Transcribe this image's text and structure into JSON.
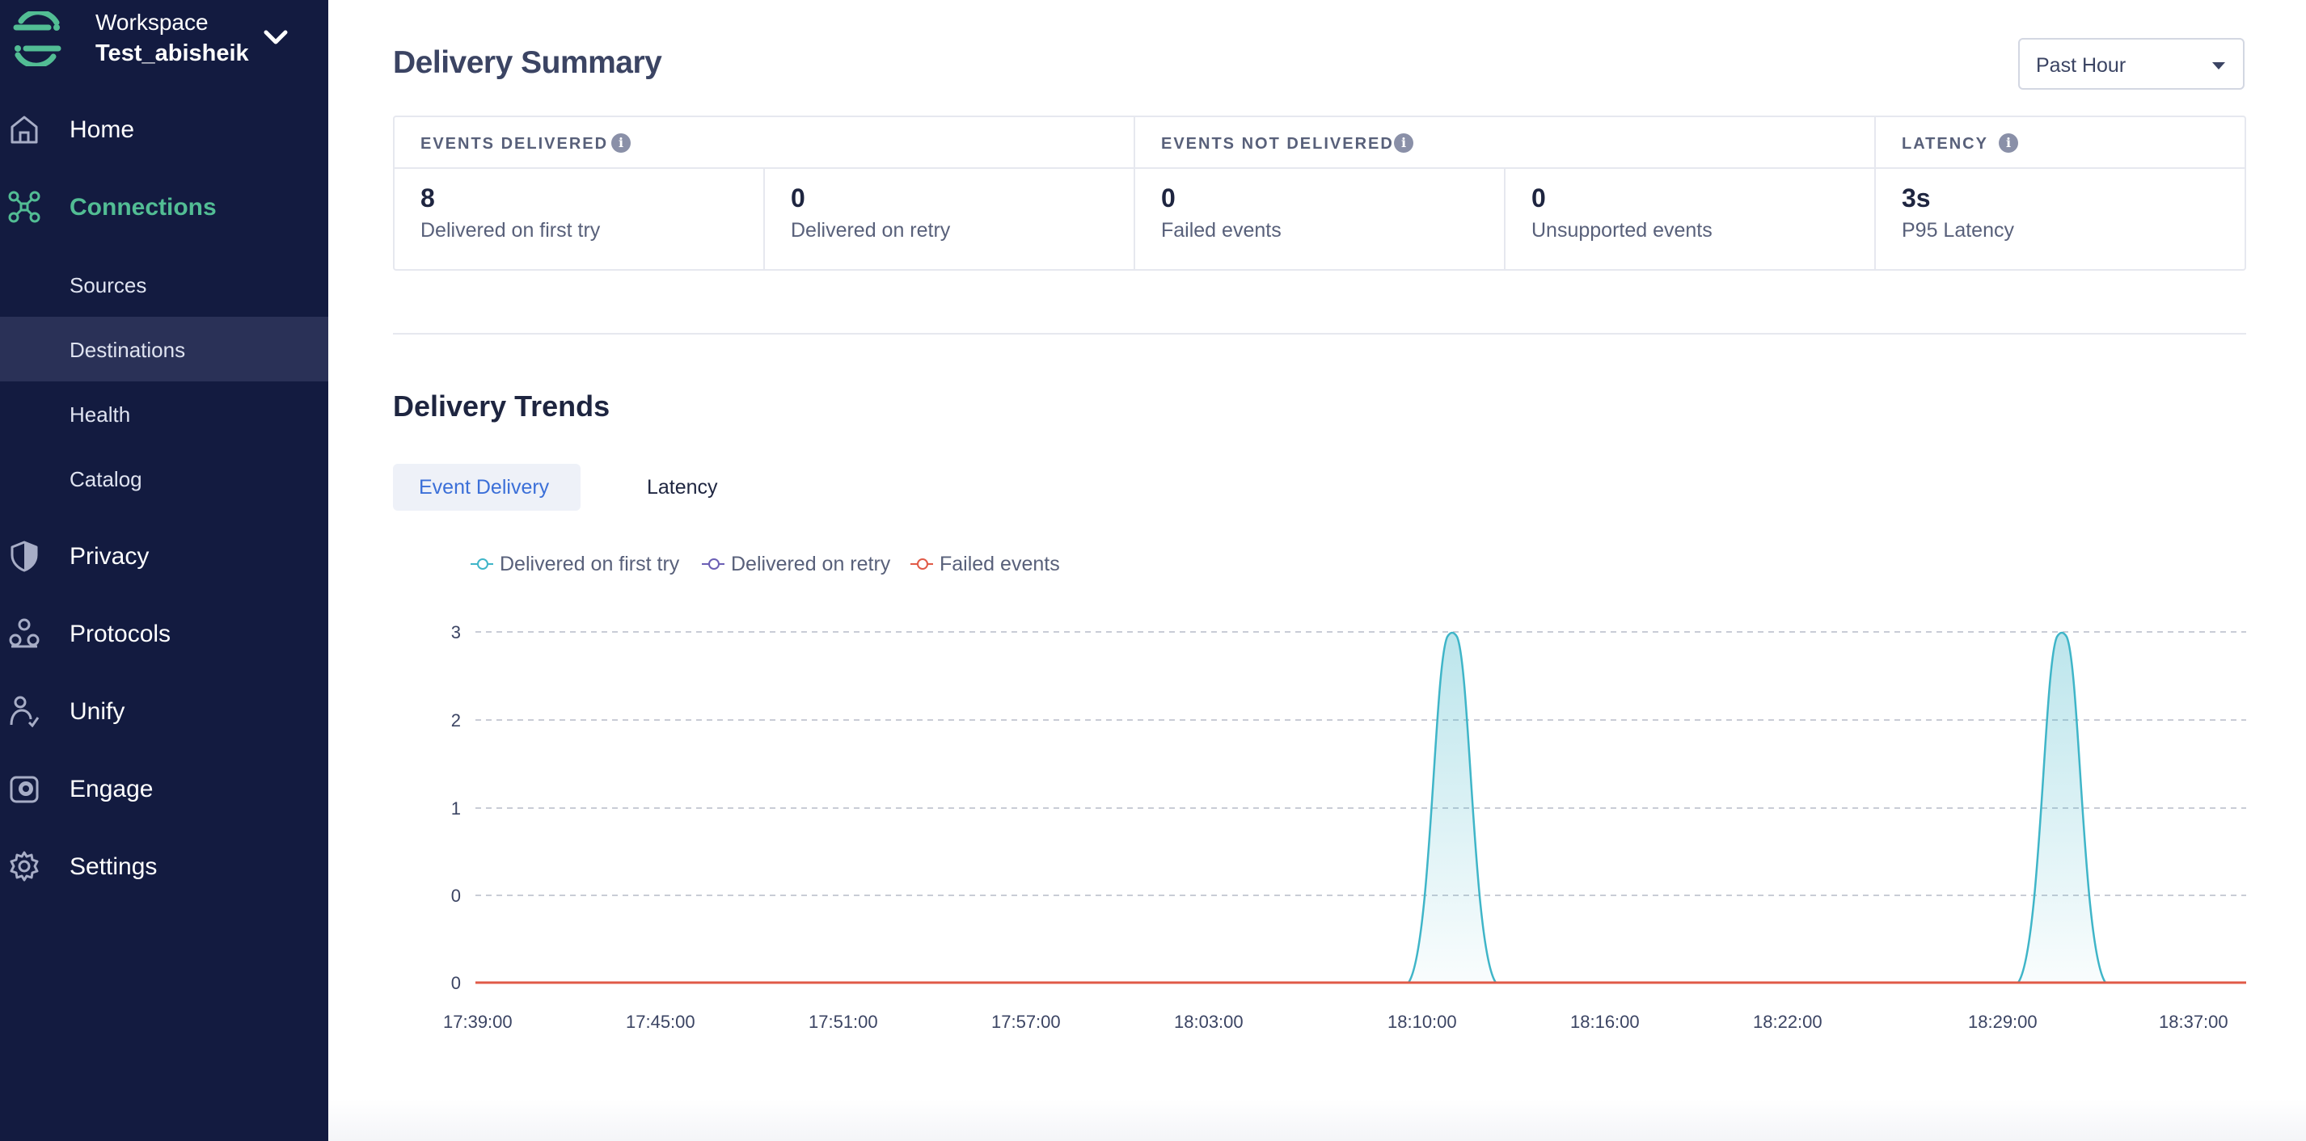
{
  "workspace": {
    "label": "Workspace",
    "name": "Test_abisheik"
  },
  "nav": {
    "home": "Home",
    "connections": "Connections",
    "sub": [
      "Sources",
      "Destinations",
      "Health",
      "Catalog"
    ],
    "privacy": "Privacy",
    "protocols": "Protocols",
    "unify": "Unify",
    "engage": "Engage",
    "settings": "Settings",
    "selected_sub": "Destinations",
    "active_section": "Connections"
  },
  "summary": {
    "title": "Delivery Summary",
    "range": "Past Hour",
    "groups": [
      "EVENTS DELIVERED",
      "EVENTS NOT DELIVERED",
      "LATENCY"
    ],
    "cells": [
      {
        "value": "8",
        "caption": "Delivered on first try"
      },
      {
        "value": "0",
        "caption": "Delivered on retry"
      },
      {
        "value": "0",
        "caption": "Failed events"
      },
      {
        "value": "0",
        "caption": "Unsupported events"
      },
      {
        "value": "3s",
        "caption": "P95 Latency"
      }
    ]
  },
  "trends": {
    "title": "Delivery Trends",
    "tabs": [
      "Event Delivery",
      "Latency"
    ],
    "active_tab": "Event Delivery"
  },
  "colors": {
    "sidebar_bg": "#131b40",
    "accent_green": "#52bd94",
    "first_try": "#3fb5c8",
    "retry": "#6b5fb5",
    "failed": "#e05a47",
    "tab_active": "#3b6fd8"
  },
  "chart_data": {
    "type": "area",
    "legend": [
      "Delivered on first try",
      "Delivered on retry",
      "Failed events"
    ],
    "legend_position": "top-left",
    "grid": "horizontal-dashed",
    "y_ticks": [
      "0",
      "0",
      "1",
      "2",
      "3"
    ],
    "x_ticks": [
      "17:39:00",
      "17:45:00",
      "17:51:00",
      "17:57:00",
      "18:03:00",
      "18:10:00",
      "18:16:00",
      "18:22:00",
      "18:29:00",
      "18:37:00"
    ],
    "series": [
      {
        "name": "Delivered on first try",
        "peaks": [
          {
            "x": "18:10:00",
            "y": 3
          },
          {
            "x": "18:30:00",
            "y": 3
          }
        ],
        "baseline": 0
      },
      {
        "name": "Delivered on retry",
        "values": [
          0
        ]
      },
      {
        "name": "Failed events",
        "values": [
          0
        ]
      }
    ]
  }
}
